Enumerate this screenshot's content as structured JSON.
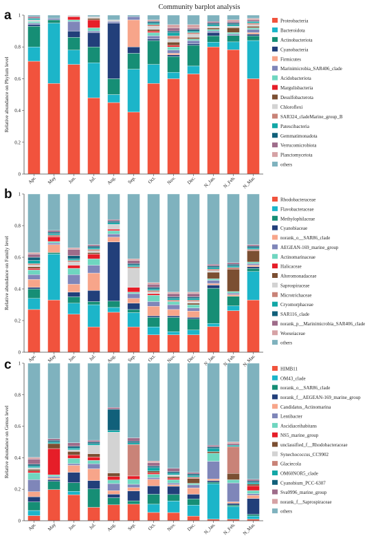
{
  "figure": {
    "title": "Community barplot analysis"
  },
  "chart_data": [
    {
      "type": "bar",
      "stacked": true,
      "panel_label": "a",
      "xlabel": "",
      "ylabel": "Relative abundance on Phylum level",
      "ylim": [
        0,
        1
      ],
      "yticks": [
        "0",
        "0.2",
        "0.4",
        "0.6",
        "0.8",
        "1"
      ],
      "grid": false,
      "legend_position": "right",
      "categories": [
        "Apr.",
        "May",
        "Jun.",
        "Jul.",
        "Aug.",
        "Sep.",
        "Oct.",
        "Nov.",
        "Dec.",
        "N_Jan.",
        "N_Feb.",
        "N_Mar."
      ],
      "series": [
        {
          "name": "Proteobacteria",
          "color": "#F1533D",
          "values": [
            0.71,
            0.57,
            0.69,
            0.48,
            0.45,
            0.39,
            0.57,
            0.6,
            0.63,
            0.8,
            0.79,
            0.6
          ]
        },
        {
          "name": "Bacteroidota",
          "color": "#1CB5C9",
          "values": [
            0.09,
            0.38,
            0.09,
            0.22,
            0.05,
            0.27,
            0.12,
            0.04,
            0.05,
            0.03,
            0.05,
            0.24
          ]
        },
        {
          "name": "Actinobacteriota",
          "color": "#168E75",
          "values": [
            0.13,
            0.02,
            0.08,
            0.1,
            0.1,
            0.1,
            0.15,
            0.1,
            0.13,
            0.04,
            0.04,
            0.03
          ]
        },
        {
          "name": "Cyanobacteria",
          "color": "#223F7A",
          "values": [
            0.01,
            0.0,
            0.04,
            0.09,
            0.35,
            0.04,
            0.01,
            0.01,
            0.01,
            0.02,
            0.0,
            0.01
          ]
        },
        {
          "name": "Firmicutes",
          "color": "#F7A58A",
          "values": [
            0.0,
            0.0,
            0.0,
            0.0,
            0.0,
            0.17,
            0.0,
            0.01,
            0.0,
            0.0,
            0.0,
            0.01
          ]
        },
        {
          "name": "Marinimicrobia_SAR406_clade",
          "color": "#7F86B9",
          "values": [
            0.01,
            0.01,
            0.06,
            0.01,
            0.01,
            0.02,
            0.02,
            0.02,
            0.02,
            0.01,
            0.01,
            0.02
          ]
        },
        {
          "name": "Acidobacteriota",
          "color": "#6FD6C0",
          "values": [
            0.01,
            0.0,
            0.01,
            0.02,
            0.0,
            0.0,
            0.02,
            0.02,
            0.01,
            0.01,
            0.01,
            0.01
          ]
        },
        {
          "name": "Margulisbacteria",
          "color": "#E61E28",
          "values": [
            0.0,
            0.0,
            0.02,
            0.05,
            0.0,
            0.0,
            0.01,
            0.01,
            0.0,
            0.0,
            0.0,
            0.0
          ]
        },
        {
          "name": "Desulfobacterota",
          "color": "#7B4F32",
          "values": [
            0.0,
            0.0,
            0.0,
            0.01,
            0.0,
            0.0,
            0.01,
            0.02,
            0.01,
            0.01,
            0.03,
            0.01
          ]
        },
        {
          "name": "Chloroflexi",
          "color": "#D3D3D3",
          "values": [
            0.01,
            0.0,
            0.01,
            0.01,
            0.01,
            0.0,
            0.02,
            0.02,
            0.02,
            0.01,
            0.01,
            0.01
          ]
        },
        {
          "name": "SAR324_cladeMarine_group_B",
          "color": "#C98378",
          "values": [
            0.0,
            0.0,
            0.0,
            0.0,
            0.0,
            0.0,
            0.01,
            0.02,
            0.01,
            0.0,
            0.0,
            0.01
          ]
        },
        {
          "name": "Patescibacteria",
          "color": "#12A7A6",
          "values": [
            0.01,
            0.0,
            0.0,
            0.0,
            0.0,
            0.0,
            0.01,
            0.02,
            0.01,
            0.01,
            0.01,
            0.01
          ]
        },
        {
          "name": "Gemmatimonadota",
          "color": "#11607A",
          "values": [
            0.0,
            0.0,
            0.0,
            0.0,
            0.0,
            0.0,
            0.01,
            0.01,
            0.01,
            0.01,
            0.01,
            0.0
          ]
        },
        {
          "name": "Verrucomicrobiota",
          "color": "#9E6C8A",
          "values": [
            0.01,
            0.0,
            0.0,
            0.0,
            0.0,
            0.0,
            0.0,
            0.02,
            0.01,
            0.01,
            0.01,
            0.01
          ]
        },
        {
          "name": "Planctomycetota",
          "color": "#D6A2A5",
          "values": [
            0.0,
            0.0,
            0.0,
            0.0,
            0.0,
            0.0,
            0.01,
            0.02,
            0.02,
            0.0,
            0.01,
            0.01
          ]
        },
        {
          "name": "others",
          "color": "#7FB2BE",
          "values": [
            0.01,
            0.02,
            0.0,
            0.01,
            0.03,
            0.01,
            0.03,
            0.06,
            0.06,
            0.04,
            0.03,
            0.02
          ]
        }
      ]
    },
    {
      "type": "bar",
      "stacked": true,
      "panel_label": "b",
      "xlabel": "",
      "ylabel": "Relative abundance on Family level",
      "ylim": [
        0,
        1
      ],
      "yticks": [
        "0",
        "0.2",
        "0.4",
        "0.6",
        "0.8",
        "1"
      ],
      "grid": false,
      "legend_position": "right",
      "categories": [
        "Apr.",
        "May",
        "Jun.",
        "Jul.",
        "Aug.",
        "Sep.",
        "Oct.",
        "Nov.",
        "Dec.",
        "N_Jan.",
        "N_Feb.",
        "N_Mar."
      ],
      "series": [
        {
          "name": "Rhodobacteraceae",
          "color": "#F1533D",
          "values": [
            0.27,
            0.33,
            0.24,
            0.16,
            0.25,
            0.16,
            0.11,
            0.11,
            0.11,
            0.16,
            0.26,
            0.33
          ]
        },
        {
          "name": "Flavobacteraceae",
          "color": "#1CB5C9",
          "values": [
            0.07,
            0.29,
            0.07,
            0.14,
            0.03,
            0.09,
            0.05,
            0.02,
            0.03,
            0.02,
            0.03,
            0.18
          ]
        },
        {
          "name": "Methylophilaceae",
          "color": "#168E75",
          "values": [
            0.06,
            0.01,
            0.04,
            0.02,
            0.04,
            0.02,
            0.06,
            0.09,
            0.07,
            0.22,
            0.06,
            0.02
          ]
        },
        {
          "name": "Cyanobiaceae",
          "color": "#223F7A",
          "values": [
            0.01,
            0.0,
            0.03,
            0.07,
            0.37,
            0.04,
            0.01,
            0.01,
            0.01,
            0.02,
            0.0,
            0.01
          ]
        },
        {
          "name": "norank_o__SAR86_clade",
          "color": "#F7A58A",
          "values": [
            0.05,
            0.05,
            0.05,
            0.11,
            0.03,
            0.03,
            0.06,
            0.04,
            0.04,
            0.01,
            0.01,
            0.01
          ]
        },
        {
          "name": "AEGEAN-169_marine_group",
          "color": "#7F86B9",
          "values": [
            0.03,
            0.01,
            0.06,
            0.05,
            0.02,
            0.03,
            0.03,
            0.03,
            0.02,
            0.02,
            0.01,
            0.01
          ]
        },
        {
          "name": "Actinomarinaceae",
          "color": "#6FD6C0",
          "values": [
            0.03,
            0.01,
            0.04,
            0.04,
            0.02,
            0.01,
            0.04,
            0.02,
            0.02,
            0.01,
            0.01,
            0.01
          ]
        },
        {
          "name": "Halicaceae",
          "color": "#E61E28",
          "values": [
            0.01,
            0.03,
            0.02,
            0.03,
            0.01,
            0.03,
            0.01,
            0.0,
            0.0,
            0.0,
            0.0,
            0.0
          ]
        },
        {
          "name": "Alteromonadaceae",
          "color": "#7B4F32",
          "values": [
            0.01,
            0.0,
            0.0,
            0.01,
            0.0,
            0.0,
            0.0,
            0.0,
            0.01,
            0.04,
            0.14,
            0.07
          ]
        },
        {
          "name": "Saprospiraceae",
          "color": "#D3D3D3",
          "values": [
            0.01,
            0.0,
            0.02,
            0.01,
            0.03,
            0.12,
            0.01,
            0.0,
            0.01,
            0.01,
            0.0,
            0.0
          ]
        },
        {
          "name": "Microtrichaceae",
          "color": "#C98378",
          "values": [
            0.01,
            0.01,
            0.01,
            0.01,
            0.0,
            0.01,
            0.01,
            0.01,
            0.01,
            0.01,
            0.01,
            0.01
          ]
        },
        {
          "name": "Cryomorphaceae",
          "color": "#12A7A6",
          "values": [
            0.02,
            0.01,
            0.01,
            0.01,
            0.01,
            0.01,
            0.01,
            0.01,
            0.01,
            0.01,
            0.01,
            0.01
          ]
        },
        {
          "name": "SAR116_clade",
          "color": "#11607A",
          "values": [
            0.02,
            0.01,
            0.02,
            0.01,
            0.01,
            0.01,
            0.01,
            0.01,
            0.01,
            0.01,
            0.01,
            0.01
          ]
        },
        {
          "name": "norank_p__Marinimicrobia_SAR406_clade",
          "color": "#9E6C8A",
          "values": [
            0.02,
            0.01,
            0.04,
            0.01,
            0.01,
            0.02,
            0.02,
            0.02,
            0.02,
            0.01,
            0.01,
            0.01
          ]
        },
        {
          "name": "Woeseiaceae",
          "color": "#D6A2A5",
          "values": [
            0.01,
            0.0,
            0.01,
            0.0,
            0.0,
            0.01,
            0.01,
            0.01,
            0.01,
            0.0,
            0.0,
            0.0
          ]
        },
        {
          "name": "others",
          "color": "#7FB2BE",
          "values": [
            0.37,
            0.23,
            0.34,
            0.32,
            0.16,
            0.41,
            0.56,
            0.62,
            0.62,
            0.44,
            0.43,
            0.32
          ]
        }
      ]
    },
    {
      "type": "bar",
      "stacked": true,
      "panel_label": "c",
      "xlabel": "",
      "ylabel": "Relative abundance on Genus level",
      "ylim": [
        0,
        1
      ],
      "yticks": [
        "0",
        "0.2",
        "0.4",
        "0.6",
        "0.8",
        "1"
      ],
      "grid": false,
      "legend_position": "right",
      "categories": [
        "Apr.",
        "May",
        "Jun.",
        "Jul.",
        "Aug.",
        "Sep.",
        "Oct.",
        "Nov.",
        "Dec.",
        "N_Jan.",
        "N_Feb.",
        "N_Mar."
      ],
      "series": [
        {
          "name": "HIMB11",
          "color": "#F1533D",
          "values": [
            0.03,
            0.19,
            0.15,
            0.08,
            0.09,
            0.1,
            0.05,
            0.05,
            0.03,
            0.01,
            0.01,
            0.01
          ]
        },
        {
          "name": "OM43_clade",
          "color": "#1CB5C9",
          "values": [
            0.03,
            0.0,
            0.02,
            0.0,
            0.0,
            0.0,
            0.05,
            0.07,
            0.07,
            0.22,
            0.08,
            0.02
          ]
        },
        {
          "name": "norank_o__SAR86_clade",
          "color": "#168E75",
          "values": [
            0.05,
            0.05,
            0.05,
            0.11,
            0.04,
            0.02,
            0.06,
            0.04,
            0.04,
            0.01,
            0.01,
            0.01
          ]
        },
        {
          "name": "norank_f__AEGEAN-169_marine_group",
          "color": "#223F7A",
          "values": [
            0.03,
            0.01,
            0.06,
            0.05,
            0.02,
            0.06,
            0.05,
            0.05,
            0.03,
            0.01,
            0.01,
            0.1
          ]
        },
        {
          "name": "Candidatus_Actinomarina",
          "color": "#F7A58A",
          "values": [
            0.03,
            0.01,
            0.04,
            0.07,
            0.02,
            0.02,
            0.04,
            0.01,
            0.04,
            0.01,
            0.01,
            0.02
          ]
        },
        {
          "name": "Lentibacter",
          "color": "#7F86B9",
          "values": [
            0.07,
            0.01,
            0.01,
            0.03,
            0.04,
            0.02,
            0.01,
            0.01,
            0.02,
            0.11,
            0.12,
            0.01
          ]
        },
        {
          "name": "Ascidiaceihabitans",
          "color": "#6FD6C0",
          "values": [
            0.04,
            0.01,
            0.03,
            0.02,
            0.02,
            0.03,
            0.02,
            0.02,
            0.01,
            0.05,
            0.02,
            0.02
          ]
        },
        {
          "name": "NS5_marine_group",
          "color": "#E61E28",
          "values": [
            0.01,
            0.16,
            0.02,
            0.02,
            0.02,
            0.02,
            0.01,
            0.01,
            0.0,
            0.0,
            0.0,
            0.03
          ]
        },
        {
          "name": "unclassified_f__Rhodobacteraceae",
          "color": "#7B4F32",
          "values": [
            0.01,
            0.03,
            0.02,
            0.02,
            0.02,
            0.0,
            0.01,
            0.01,
            0.03,
            0.01,
            0.04,
            0.01
          ]
        },
        {
          "name": "Synechococcus_CC9902",
          "color": "#D3D3D3",
          "values": [
            0.01,
            0.0,
            0.01,
            0.05,
            0.23,
            0.0,
            0.0,
            0.01,
            0.0,
            0.0,
            0.0,
            0.0
          ]
        },
        {
          "name": "Glaciecola",
          "color": "#C98378",
          "values": [
            0.0,
            0.0,
            0.0,
            0.0,
            0.0,
            0.19,
            0.0,
            0.0,
            0.01,
            0.0,
            0.17,
            0.0
          ]
        },
        {
          "name": "OM60NOR5_clade",
          "color": "#12A7A6",
          "values": [
            0.01,
            0.01,
            0.01,
            0.01,
            0.01,
            0.01,
            0.02,
            0.01,
            0.01,
            0.02,
            0.01,
            0.01
          ]
        },
        {
          "name": "Cyanobium_PCC-6307",
          "color": "#11607A",
          "values": [
            0.01,
            0.01,
            0.01,
            0.01,
            0.12,
            0.01,
            0.01,
            0.01,
            0.01,
            0.01,
            0.0,
            0.01
          ]
        },
        {
          "name": "Sva0996_marine_group",
          "color": "#9E6C8A",
          "values": [
            0.03,
            0.01,
            0.02,
            0.01,
            0.01,
            0.02,
            0.02,
            0.02,
            0.01,
            0.01,
            0.01,
            0.01
          ]
        },
        {
          "name": "norank_f__Saprospiraceae",
          "color": "#D6A2A5",
          "values": [
            0.01,
            0.0,
            0.0,
            0.0,
            0.0,
            0.0,
            0.01,
            0.0,
            0.0,
            0.0,
            0.01,
            0.0
          ]
        },
        {
          "name": "others",
          "color": "#7FB2BE",
          "values": [
            0.55,
            0.46,
            0.46,
            0.46,
            0.25,
            0.45,
            0.59,
            0.64,
            0.7,
            0.51,
            0.5,
            0.73
          ]
        }
      ]
    }
  ]
}
